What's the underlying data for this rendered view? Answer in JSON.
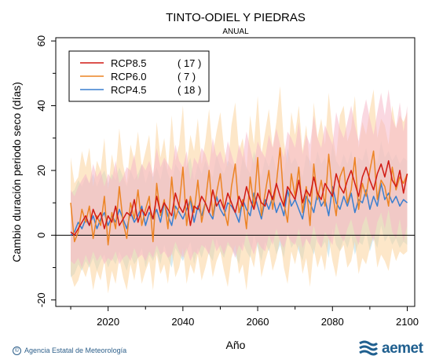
{
  "chart_data": {
    "type": "line",
    "title": "TINTO-ODIEL Y PIEDRAS",
    "subtitle": "ANUAL",
    "xlabel": "Año",
    "ylabel": "Cambio duración periodo seco (días)",
    "xlim": [
      2006,
      2102
    ],
    "ylim": [
      -22,
      61
    ],
    "x_ticks": [
      2020,
      2040,
      2060,
      2080,
      2100
    ],
    "y_ticks": [
      -20,
      0,
      20,
      40,
      60
    ],
    "y_tick_labels": [
      "-20",
      "0",
      "20",
      "40",
      "60"
    ],
    "reference_line": 0,
    "legend_position": "top-left",
    "x": [
      2010,
      2011,
      2012,
      2013,
      2014,
      2015,
      2016,
      2017,
      2018,
      2019,
      2020,
      2021,
      2022,
      2023,
      2024,
      2025,
      2026,
      2027,
      2028,
      2029,
      2030,
      2031,
      2032,
      2033,
      2034,
      2035,
      2036,
      2037,
      2038,
      2039,
      2040,
      2041,
      2042,
      2043,
      2044,
      2045,
      2046,
      2047,
      2048,
      2049,
      2050,
      2051,
      2052,
      2053,
      2054,
      2055,
      2056,
      2057,
      2058,
      2059,
      2060,
      2061,
      2062,
      2063,
      2064,
      2065,
      2066,
      2067,
      2068,
      2069,
      2070,
      2071,
      2072,
      2073,
      2074,
      2075,
      2076,
      2077,
      2078,
      2079,
      2080,
      2081,
      2082,
      2083,
      2084,
      2085,
      2086,
      2087,
      2088,
      2089,
      2090,
      2091,
      2092,
      2093,
      2094,
      2095,
      2096,
      2097,
      2098,
      2099,
      2100
    ],
    "series": [
      {
        "name": "RCP8.5",
        "count": "( 17 )",
        "color": "#d11a14",
        "band_color": "#f5b8c8",
        "values": [
          1,
          0,
          2,
          4,
          6,
          3,
          8,
          5,
          7,
          2,
          6,
          4,
          9,
          3,
          5,
          7,
          6,
          11,
          4,
          8,
          6,
          9,
          5,
          12,
          7,
          10,
          8,
          6,
          13,
          9,
          7,
          11,
          3,
          9,
          8,
          12,
          10,
          7,
          14,
          9,
          11,
          8,
          13,
          10,
          7,
          12,
          9,
          15,
          11,
          8,
          13,
          10,
          9,
          14,
          11,
          16,
          12,
          9,
          15,
          13,
          11,
          17,
          10,
          14,
          12,
          18,
          13,
          11,
          16,
          14,
          12,
          19,
          15,
          13,
          17,
          20,
          16,
          12,
          18,
          21,
          17,
          14,
          19,
          22,
          18,
          23,
          17,
          15,
          20,
          13,
          19
        ],
        "lower": [
          -8,
          -9,
          -7,
          -10,
          -6,
          -9,
          -5,
          -8,
          -6,
          -9,
          -7,
          -8,
          -5,
          -9,
          -7,
          -6,
          -8,
          -4,
          -7,
          -6,
          -8,
          -5,
          -7,
          -3,
          -6,
          -5,
          -7,
          -6,
          -2,
          -5,
          -7,
          -4,
          -8,
          -5,
          -6,
          -3,
          -4,
          -6,
          -1,
          -5,
          -3,
          -6,
          -2,
          -4,
          -7,
          -3,
          -5,
          1,
          -3,
          -6,
          -2,
          -4,
          -5,
          0,
          -3,
          2,
          -2,
          -4,
          0,
          -2,
          -3,
          2,
          -4,
          -1,
          -3,
          3,
          -2,
          -4,
          1,
          -1,
          -3,
          4,
          0,
          -2,
          2,
          5,
          0,
          -3,
          3,
          6,
          1,
          -2,
          4,
          7,
          2,
          8,
          1,
          -1,
          5,
          -2,
          3
        ],
        "upper": [
          14,
          12,
          15,
          17,
          19,
          16,
          22,
          18,
          20,
          15,
          19,
          17,
          23,
          16,
          18,
          21,
          20,
          25,
          17,
          22,
          20,
          23,
          19,
          27,
          21,
          24,
          22,
          20,
          28,
          23,
          21,
          26,
          17,
          24,
          22,
          27,
          25,
          21,
          30,
          24,
          26,
          22,
          29,
          25,
          21,
          28,
          24,
          32,
          27,
          22,
          29,
          26,
          24,
          31,
          27,
          33,
          28,
          24,
          32,
          30,
          27,
          35,
          25,
          31,
          28,
          37,
          30,
          27,
          34,
          31,
          28,
          38,
          33,
          30,
          35,
          40,
          34,
          29,
          37,
          42,
          36,
          31,
          38,
          44,
          37,
          45,
          36,
          33,
          41,
          32,
          40
        ]
      },
      {
        "name": "RCP6.0",
        "count": "(  7 )",
        "color": "#ec8424",
        "band_color": "#fcd39c",
        "values": [
          10,
          -2,
          1,
          8,
          4,
          9,
          -1,
          6,
          3,
          12,
          -3,
          7,
          2,
          15,
          4,
          -1,
          10,
          5,
          14,
          3,
          8,
          12,
          -2,
          16,
          6,
          11,
          2,
          18,
          5,
          9,
          21,
          3,
          12,
          7,
          17,
          4,
          10,
          20,
          6,
          13,
          19,
          8,
          3,
          15,
          22,
          7,
          11,
          2,
          18,
          9,
          24,
          6,
          13,
          20,
          8,
          16,
          27,
          10,
          4,
          19,
          12,
          21,
          7,
          15,
          3,
          22,
          11,
          17,
          9,
          25,
          13,
          6,
          18,
          21,
          10,
          14,
          24,
          8,
          16,
          12,
          20,
          26,
          11,
          17,
          15,
          9,
          21,
          14,
          18,
          16,
          19
        ],
        "lower": [
          -12,
          -16,
          -14,
          -10,
          -13,
          -9,
          -17,
          -11,
          -14,
          -8,
          -18,
          -11,
          -15,
          -7,
          -13,
          -17,
          -9,
          -14,
          -7,
          -15,
          -11,
          -8,
          -17,
          -6,
          -12,
          -9,
          -15,
          -5,
          -13,
          -10,
          -4,
          -15,
          -9,
          -12,
          -6,
          -14,
          -10,
          -5,
          -13,
          -8,
          -5,
          -11,
          -16,
          -7,
          -3,
          -12,
          -9,
          -17,
          -6,
          -10,
          -2,
          -13,
          -8,
          -4,
          -11,
          -7,
          -1,
          -10,
          -15,
          -5,
          -9,
          -3,
          -12,
          -7,
          -16,
          -4,
          -10,
          -6,
          -11,
          -1,
          -8,
          -13,
          -5,
          -3,
          -10,
          -8,
          -2,
          -12,
          -7,
          -9,
          -4,
          0,
          -10,
          -6,
          -8,
          -11,
          -4,
          -8,
          -5,
          -6,
          -5
        ],
        "upper": [
          24,
          16,
          18,
          26,
          21,
          27,
          15,
          23,
          20,
          30,
          14,
          25,
          19,
          33,
          22,
          16,
          28,
          23,
          32,
          21,
          26,
          31,
          16,
          35,
          24,
          30,
          20,
          37,
          23,
          28,
          40,
          21,
          31,
          26,
          36,
          22,
          29,
          39,
          25,
          32,
          38,
          27,
          21,
          34,
          41,
          26,
          30,
          20,
          37,
          28,
          43,
          25,
          32,
          39,
          27,
          35,
          46,
          29,
          22,
          38,
          31,
          40,
          26,
          34,
          21,
          41,
          30,
          36,
          28,
          44,
          32,
          24,
          37,
          40,
          29,
          33,
          43,
          27,
          35,
          31,
          39,
          45,
          30,
          36,
          34,
          28,
          40,
          33,
          37,
          35,
          38
        ]
      },
      {
        "name": "RCP4.5",
        "count": "( 18 )",
        "color": "#3a7fcf",
        "band_color": "#b5dbe8",
        "values": [
          0,
          1,
          4,
          2,
          5,
          3,
          6,
          2,
          5,
          7,
          3,
          6,
          4,
          8,
          5,
          2,
          7,
          4,
          6,
          9,
          3,
          7,
          5,
          8,
          4,
          10,
          6,
          3,
          9,
          7,
          5,
          8,
          11,
          4,
          9,
          6,
          10,
          7,
          5,
          12,
          8,
          6,
          10,
          9,
          7,
          4,
          11,
          8,
          6,
          13,
          9,
          5,
          11,
          8,
          12,
          7,
          10,
          6,
          14,
          9,
          11,
          8,
          5,
          12,
          10,
          7,
          13,
          9,
          11,
          6,
          15,
          10,
          8,
          12,
          9,
          13,
          7,
          11,
          10,
          14,
          8,
          12,
          9,
          16,
          11,
          13,
          10,
          12,
          9,
          11,
          10
        ],
        "lower": [
          -13,
          -12,
          -9,
          -11,
          -8,
          -10,
          -7,
          -11,
          -8,
          -6,
          -10,
          -7,
          -9,
          -5,
          -8,
          -11,
          -6,
          -9,
          -7,
          -4,
          -10,
          -6,
          -8,
          -5,
          -9,
          -3,
          -7,
          -10,
          -4,
          -6,
          -8,
          -5,
          -2,
          -9,
          -4,
          -7,
          -3,
          -6,
          -8,
          -1,
          -5,
          -7,
          -3,
          -4,
          -6,
          -9,
          -2,
          -5,
          -7,
          0,
          -4,
          -8,
          -2,
          -5,
          -1,
          -6,
          -3,
          -7,
          1,
          -4,
          -2,
          -5,
          -8,
          -1,
          -3,
          -6,
          0,
          -4,
          -2,
          -7,
          2,
          -3,
          -5,
          -1,
          -4,
          0,
          -6,
          -2,
          -3,
          1,
          -5,
          -1,
          -4,
          3,
          -2,
          0,
          -3,
          -1,
          -4,
          -2,
          -3
        ],
        "upper": [
          13,
          14,
          17,
          15,
          18,
          16,
          19,
          15,
          18,
          20,
          16,
          19,
          17,
          21,
          18,
          15,
          20,
          17,
          19,
          22,
          16,
          20,
          18,
          21,
          17,
          23,
          19,
          16,
          22,
          20,
          18,
          21,
          24,
          17,
          22,
          19,
          23,
          20,
          18,
          25,
          21,
          19,
          23,
          22,
          20,
          17,
          24,
          21,
          19,
          26,
          22,
          18,
          24,
          21,
          25,
          20,
          23,
          19,
          27,
          22,
          24,
          21,
          18,
          25,
          23,
          20,
          26,
          22,
          24,
          19,
          28,
          23,
          21,
          25,
          22,
          26,
          20,
          24,
          23,
          27,
          21,
          25,
          22,
          29,
          24,
          26,
          23,
          25,
          22,
          24,
          23
        ]
      }
    ]
  },
  "footer": {
    "credit": "Agencia Estatal de Meteorología",
    "copyright_symbol": "©",
    "brand": "aemet"
  }
}
